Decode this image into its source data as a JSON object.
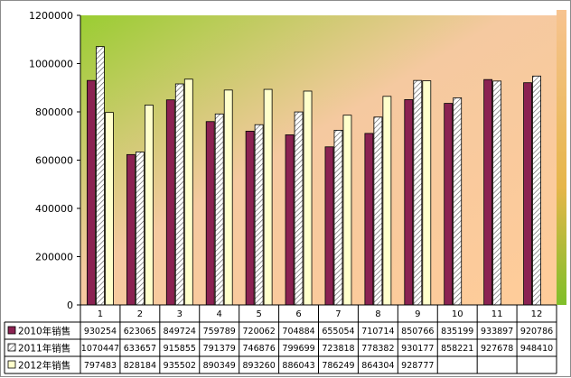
{
  "chart_data": {
    "type": "bar",
    "title": "",
    "xlabel": "",
    "ylabel": "",
    "categories": [
      "1",
      "2",
      "3",
      "4",
      "5",
      "6",
      "7",
      "8",
      "9",
      "10",
      "11",
      "12"
    ],
    "ylim": [
      0,
      1200000
    ],
    "yticks": [
      "0",
      "200000",
      "400000",
      "600000",
      "800000",
      "1000000",
      "1200000"
    ],
    "grid": false,
    "legend": "data-table-left",
    "series": [
      {
        "name": "2010年销售",
        "color": "#8b2252",
        "pattern": "solid",
        "values": [
          930254,
          623065,
          849724,
          759789,
          720062,
          704884,
          655054,
          710714,
          850766,
          835199,
          933897,
          920786
        ],
        "labels": [
          "930254",
          "623065",
          "849724",
          "759789",
          "720062",
          "704884",
          "655054",
          "710714",
          "850766",
          "835199",
          "933897",
          "920786"
        ]
      },
      {
        "name": "2011年销售",
        "color": "#ffffff",
        "pattern": "hatch",
        "values": [
          1070447,
          633657,
          915855,
          791379,
          746876,
          799699,
          723818,
          778382,
          930177,
          858221,
          927678,
          948410
        ],
        "labels": [
          "1070447",
          "633657",
          "915855",
          "791379",
          "746876",
          "799699",
          "723818",
          "778382",
          "930177",
          "858221",
          "927678",
          "948410"
        ]
      },
      {
        "name": "2012年销售",
        "color": "#ffffcc",
        "pattern": "solid",
        "values": [
          797483,
          828184,
          935502,
          890349,
          893260,
          886043,
          786249,
          864304,
          928777,
          null,
          null,
          null
        ],
        "labels": [
          "797483",
          "828184",
          "935502",
          "890349",
          "893260",
          "886043",
          "786249",
          "864304",
          "928777",
          "",
          "",
          ""
        ]
      }
    ]
  }
}
